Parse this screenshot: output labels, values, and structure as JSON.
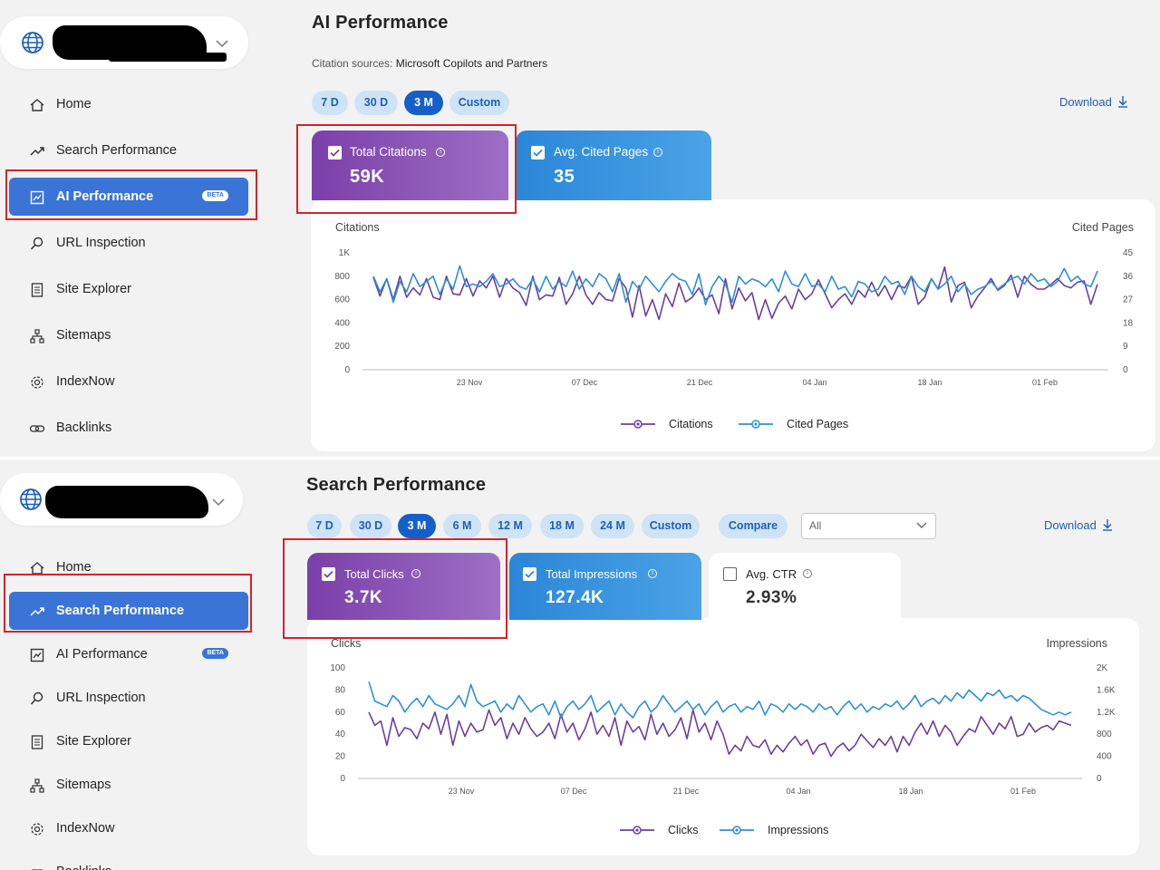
{
  "panels": {
    "top": {
      "sidebar": {
        "items": [
          {
            "label": "Home",
            "icon": "home-icon"
          },
          {
            "label": "Search Performance",
            "icon": "trend-icon"
          },
          {
            "label": "AI Performance",
            "icon": "ai-chart-icon",
            "badge": "BETA",
            "active": true
          },
          {
            "label": "URL Inspection",
            "icon": "search-icon"
          },
          {
            "label": "Site Explorer",
            "icon": "document-icon"
          },
          {
            "label": "Sitemaps",
            "icon": "sitemap-icon"
          },
          {
            "label": "IndexNow",
            "icon": "gear-icon"
          },
          {
            "label": "Backlinks",
            "icon": "link-icon"
          }
        ]
      },
      "title": "AI Performance",
      "subtitle_label": "Citation sources:",
      "subtitle_value": "Microsoft Copilots and Partners",
      "ranges": [
        "7 D",
        "30 D",
        "3 M",
        "Custom"
      ],
      "selected_range": "3 M",
      "download": "Download",
      "cards": [
        {
          "title": "Total Citations",
          "value": "59K",
          "checked": true
        },
        {
          "title": "Avg. Cited Pages",
          "value": "35",
          "checked": true
        }
      ]
    },
    "bottom": {
      "sidebar": {
        "items": [
          {
            "label": "Home",
            "icon": "home-icon"
          },
          {
            "label": "Search Performance",
            "icon": "trend-icon",
            "active": true
          },
          {
            "label": "AI Performance",
            "icon": "ai-chart-icon",
            "badge": "BETA"
          },
          {
            "label": "URL Inspection",
            "icon": "search-icon"
          },
          {
            "label": "Site Explorer",
            "icon": "document-icon"
          },
          {
            "label": "Sitemaps",
            "icon": "sitemap-icon"
          },
          {
            "label": "IndexNow",
            "icon": "gear-icon"
          },
          {
            "label": "Backlinks",
            "icon": "link-icon"
          }
        ]
      },
      "title": "Search Performance",
      "ranges": [
        "7 D",
        "30 D",
        "3 M",
        "6 M",
        "12 M",
        "18 M",
        "24 M",
        "Custom"
      ],
      "selected_range": "3 M",
      "compare": "Compare",
      "filter_value": "All",
      "download": "Download",
      "cards": [
        {
          "title": "Total Clicks",
          "value": "3.7K",
          "checked": true
        },
        {
          "title": "Total Impressions",
          "value": "127.4K",
          "checked": true
        },
        {
          "title": "Avg. CTR",
          "value": "2.93%",
          "checked": false
        }
      ]
    }
  },
  "colors": {
    "purple_series": "#6b3fa0",
    "blue_series": "#2e8fd6",
    "active_nav": "#3a74d6",
    "highlight": "#d3242a"
  },
  "chart_data": [
    {
      "type": "line",
      "title": "",
      "ylabel": "Citations",
      "y2label": "Cited Pages",
      "ylim": [
        0,
        1000
      ],
      "y2lim": [
        0,
        45
      ],
      "yticks": [
        "0",
        "200",
        "400",
        "600",
        "800",
        "1K"
      ],
      "y2ticks": [
        "0",
        "9",
        "18",
        "27",
        "36",
        "45"
      ],
      "xticks": [
        "23 Nov",
        "07 Dec",
        "21 Dec",
        "04 Jan",
        "18 Jan",
        "01 Feb"
      ],
      "series": [
        {
          "name": "Citations",
          "axis": "left",
          "values": [
            790,
            630,
            780,
            600,
            800,
            620,
            700,
            640,
            780,
            620,
            600,
            800,
            650,
            640,
            780,
            630,
            760,
            700,
            800,
            620,
            780,
            700,
            660,
            550,
            800,
            600,
            640,
            630,
            790,
            560,
            650,
            800,
            640,
            560,
            660,
            600,
            590,
            780,
            700,
            450,
            720,
            460,
            600,
            430,
            650,
            540,
            740,
            580,
            620,
            700,
            600,
            640,
            480,
            780,
            520,
            700,
            590,
            660,
            430,
            600,
            440,
            570,
            630,
            520,
            690,
            600,
            650,
            770,
            650,
            530,
            600,
            650,
            560,
            680,
            620,
            750,
            630,
            720,
            600,
            720,
            700,
            800,
            560,
            620,
            780,
            690,
            880,
            580,
            720,
            750,
            530,
            630,
            700,
            780,
            680,
            720,
            810,
            620,
            800,
            730,
            690,
            690,
            730,
            780,
            720,
            700,
            750,
            760,
            560,
            730
          ]
        },
        {
          "name": "Cited Pages",
          "axis": "right",
          "values": [
            36,
            30,
            35,
            26,
            34,
            30,
            37,
            32,
            34,
            36,
            29,
            35,
            31,
            40,
            32,
            33,
            32,
            34,
            37,
            32,
            33,
            35,
            32,
            31,
            35,
            30,
            36,
            31,
            34,
            32,
            38,
            31,
            35,
            32,
            37,
            35,
            30,
            37,
            26,
            34,
            31,
            36,
            33,
            30,
            34,
            37,
            35,
            34,
            29,
            37,
            25,
            32,
            36,
            33,
            26,
            36,
            33,
            35,
            34,
            32,
            35,
            30,
            38,
            33,
            32,
            37,
            32,
            33,
            30,
            36,
            31,
            32,
            28,
            34,
            33,
            30,
            31,
            36,
            33,
            34,
            29,
            36,
            32,
            30,
            35,
            31,
            33,
            36,
            30,
            33,
            29,
            31,
            32,
            34,
            31,
            33,
            35,
            36,
            33,
            37,
            34,
            35,
            32,
            34,
            39,
            34,
            36,
            33,
            32,
            38
          ]
        }
      ],
      "legend": "bottom"
    },
    {
      "type": "line",
      "title": "",
      "ylabel": "Clicks",
      "y2label": "Impressions",
      "ylim": [
        0,
        100
      ],
      "y2lim": [
        0,
        2000
      ],
      "yticks": [
        "0",
        "20",
        "40",
        "60",
        "80",
        "100"
      ],
      "y2ticks": [
        "0",
        "400",
        "800",
        "1.2K",
        "1.6K",
        "2K"
      ],
      "xticks": [
        "23 Nov",
        "07 Dec",
        "21 Dec",
        "04 Jan",
        "18 Jan",
        "01 Feb"
      ],
      "series": [
        {
          "name": "Clicks",
          "axis": "left",
          "values": [
            60,
            48,
            52,
            30,
            55,
            38,
            46,
            44,
            36,
            50,
            45,
            60,
            40,
            58,
            30,
            52,
            38,
            50,
            42,
            44,
            62,
            48,
            55,
            36,
            50,
            40,
            55,
            45,
            38,
            42,
            50,
            36,
            58,
            42,
            50,
            35,
            45,
            60,
            40,
            48,
            38,
            55,
            30,
            52,
            42,
            47,
            35,
            58,
            40,
            50,
            38,
            44,
            55,
            36,
            62,
            42,
            50,
            35,
            52,
            40,
            22,
            30,
            25,
            38,
            30,
            28,
            35,
            22,
            30,
            24,
            32,
            38,
            30,
            35,
            22,
            30,
            32,
            20,
            28,
            32,
            25,
            30,
            40,
            34,
            28,
            36,
            30,
            38,
            24,
            38,
            30,
            42,
            50,
            40,
            52,
            38,
            48,
            42,
            30,
            38,
            45,
            42,
            56,
            48,
            40,
            50,
            45,
            56,
            38,
            40,
            50,
            42,
            46,
            48,
            44,
            52,
            50,
            48
          ]
        },
        {
          "name": "Impressions",
          "axis": "right",
          "values": [
            1750,
            1400,
            1350,
            1300,
            1500,
            1400,
            1200,
            1350,
            1450,
            1300,
            1500,
            1350,
            1300,
            1250,
            1350,
            1500,
            1300,
            1700,
            1400,
            1300,
            1350,
            1400,
            1200,
            1350,
            1250,
            1500,
            1350,
            1200,
            1300,
            1350,
            1150,
            1400,
            1100,
            1300,
            1400,
            1250,
            1350,
            1500,
            1200,
            1300,
            1400,
            1150,
            1350,
            1200,
            1100,
            1300,
            1400,
            1200,
            1300,
            1500,
            1350,
            1200,
            1300,
            1400,
            1250,
            1350,
            1150,
            1300,
            1400,
            1200,
            1300,
            1350,
            1200,
            1300,
            1250,
            1400,
            1150,
            1350,
            1300,
            1200,
            1350,
            1250,
            1350,
            1300,
            1200,
            1350,
            1250,
            1300,
            1150,
            1300,
            1400,
            1250,
            1350,
            1200,
            1300,
            1250,
            1350,
            1300,
            1400,
            1250,
            1350,
            1500,
            1300,
            1400,
            1450,
            1350,
            1500,
            1400,
            1550,
            1450,
            1600,
            1500,
            1400,
            1550,
            1500,
            1600,
            1450,
            1500,
            1400,
            1500,
            1450,
            1350,
            1250,
            1200,
            1150,
            1200,
            1150,
            1200
          ]
        }
      ],
      "legend": "bottom"
    }
  ]
}
